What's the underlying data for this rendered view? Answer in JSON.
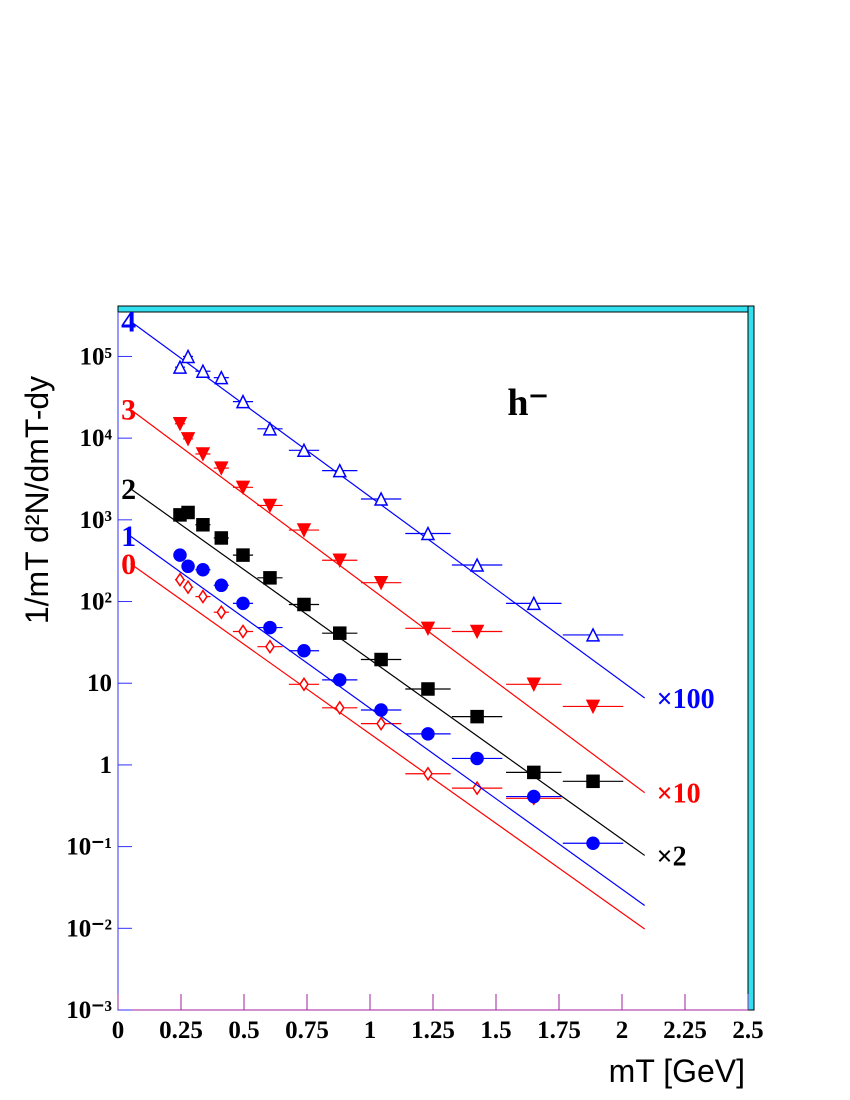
{
  "chart_data": {
    "type": "scatter",
    "log_y": true,
    "x_label": "mT   [GeV]",
    "y_label": "1/mT d²N/dmT-dy",
    "annotation": "h⁻",
    "xlim": [
      0,
      2.5
    ],
    "ylim": [
      0.001,
      350000
    ],
    "xticks": [
      0,
      0.25,
      0.5,
      0.75,
      1,
      1.25,
      1.5,
      1.75,
      2,
      2.25,
      2.5
    ],
    "yticks": [
      {
        "value": 0.001,
        "label": "10⁻³"
      },
      {
        "value": 0.01,
        "label": "10⁻²"
      },
      {
        "value": 0.1,
        "label": "10⁻¹"
      },
      1,
      10,
      {
        "value": 100,
        "label": "10²"
      },
      {
        "value": 1000,
        "label": "10³"
      },
      {
        "value": 10000,
        "label": "10⁴"
      },
      {
        "value": 100000,
        "label": "10⁵"
      }
    ],
    "x": [
      0.246,
      0.278,
      0.337,
      0.41,
      0.496,
      0.603,
      0.738,
      0.88,
      1.044,
      1.23,
      1.425,
      1.65,
      1.885
    ],
    "xerr": [
      0.02,
      0.02,
      0.03,
      0.03,
      0.04,
      0.05,
      0.06,
      0.07,
      0.08,
      0.09,
      0.1,
      0.11,
      0.12
    ],
    "series": [
      {
        "name": "0",
        "color": "#ff0000",
        "marker": "diamond-open",
        "values": [
          185,
          150,
          115,
          74,
          43,
          28,
          9.7,
          5.0,
          3.2,
          0.78,
          0.52,
          0.39
        ],
        "fit": {
          "x": [
            0.05,
            2.09
          ],
          "values": [
            290,
            0.0098
          ]
        }
      },
      {
        "name": "1",
        "color": "#0000ff",
        "marker": "circle",
        "values": [
          370,
          270,
          245,
          158,
          95,
          48,
          25,
          11,
          4.7,
          2.4,
          1.2,
          0.41,
          0.11
        ],
        "fit": {
          "x": [
            0.05,
            2.09
          ],
          "values": [
            630,
            0.019
          ]
        }
      },
      {
        "name": "2",
        "color": "#000000",
        "marker": "square",
        "scale_label": "×2",
        "values": [
          1150,
          1230,
          870,
          600,
          370,
          195,
          92,
          41,
          19.5,
          8.5,
          3.9,
          0.81,
          0.63
        ],
        "fit": {
          "x": [
            0.05,
            2.09
          ],
          "values": [
            2400,
            0.078
          ]
        }
      },
      {
        "name": "3",
        "color": "#ff0000",
        "marker": "triangle-down",
        "scale_label": "×10",
        "values": [
          15000,
          9800,
          6400,
          4300,
          2500,
          1500,
          750,
          320,
          170,
          47,
          43,
          9.7,
          5.2
        ],
        "fit": {
          "x": [
            0.05,
            2.09
          ],
          "values": [
            22400,
            0.457
          ]
        }
      },
      {
        "name": "4",
        "color": "#0000ff",
        "marker": "triangle-open",
        "scale_label": "×100",
        "values": [
          74000,
          100000,
          66000,
          55000,
          28000,
          13000,
          7100,
          4000,
          1800,
          680,
          280,
          95,
          39
        ],
        "fit": {
          "x": [
            0.05,
            2.09
          ],
          "values": [
            269000,
            6.6
          ]
        }
      }
    ]
  }
}
